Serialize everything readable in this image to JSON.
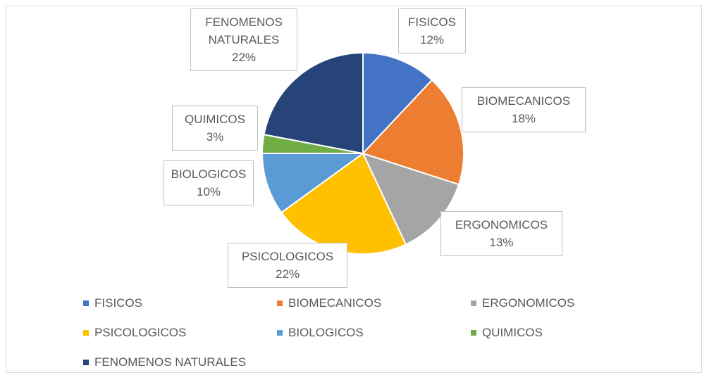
{
  "chart_data": {
    "type": "pie",
    "categories": [
      "FISICOS",
      "BIOMECANICOS",
      "ERGONOMICOS",
      "PSICOLOGICOS",
      "BIOLOGICOS",
      "QUIMICOS",
      "FENOMENOS NATURALES"
    ],
    "values": [
      12,
      18,
      13,
      22,
      10,
      3,
      22
    ],
    "value_labels": [
      "12%",
      "18%",
      "13%",
      "22%",
      "10%",
      "3%",
      "22%"
    ],
    "colors": [
      "#4472c4",
      "#ed7d31",
      "#a5a5a5",
      "#ffc000",
      "#5b9bd5",
      "#70ad47",
      "#264478"
    ],
    "legend": "bottom"
  }
}
